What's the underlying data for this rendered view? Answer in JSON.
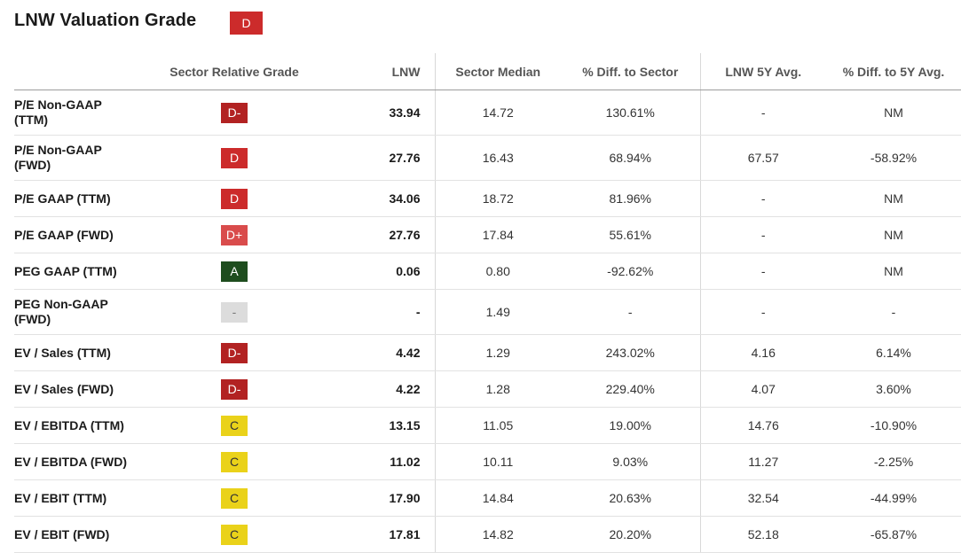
{
  "title": "LNW Valuation Grade",
  "overall_grade": {
    "label": "D",
    "color": "#cc2b2b"
  },
  "columns": {
    "metric": "",
    "grade": "Sector Relative Grade",
    "lnw": "LNW",
    "median": "Sector Median",
    "diff_sector": "% Diff. to Sector",
    "avg5y": "LNW 5Y Avg.",
    "diff5y": "% Diff. to 5Y Avg."
  },
  "grade_colors": {
    "D-": {
      "bg": "#b22222",
      "fg": "#ffffff"
    },
    "D": {
      "bg": "#cc2b2b",
      "fg": "#ffffff"
    },
    "D+": {
      "bg": "#d94c4c",
      "fg": "#ffffff"
    },
    "A": {
      "bg": "#1e4d1e",
      "fg": "#ffffff"
    },
    "C": {
      "bg": "#ead21a",
      "fg": "#333333"
    },
    "-": {
      "bg": "#dcdcdc",
      "fg": "#777777"
    }
  },
  "rows": [
    {
      "metric": [
        "P/E Non-GAAP",
        "(TTM)"
      ],
      "grade": "D-",
      "lnw": "33.94",
      "median": "14.72",
      "diff_sector": "130.61%",
      "avg5y": "-",
      "diff5y": "NM"
    },
    {
      "metric": [
        "P/E Non-GAAP",
        "(FWD)"
      ],
      "grade": "D",
      "lnw": "27.76",
      "median": "16.43",
      "diff_sector": "68.94%",
      "avg5y": "67.57",
      "diff5y": "-58.92%"
    },
    {
      "metric": [
        "P/E GAAP (TTM)"
      ],
      "grade": "D",
      "lnw": "34.06",
      "median": "18.72",
      "diff_sector": "81.96%",
      "avg5y": "-",
      "diff5y": "NM"
    },
    {
      "metric": [
        "P/E GAAP (FWD)"
      ],
      "grade": "D+",
      "lnw": "27.76",
      "median": "17.84",
      "diff_sector": "55.61%",
      "avg5y": "-",
      "diff5y": "NM"
    },
    {
      "metric": [
        "PEG GAAP (TTM)"
      ],
      "grade": "A",
      "lnw": "0.06",
      "median": "0.80",
      "diff_sector": "-92.62%",
      "avg5y": "-",
      "diff5y": "NM"
    },
    {
      "metric": [
        "PEG Non-GAAP",
        "(FWD)"
      ],
      "grade": "-",
      "lnw": "-",
      "median": "1.49",
      "diff_sector": "-",
      "avg5y": "-",
      "diff5y": "-"
    },
    {
      "metric": [
        "EV / Sales (TTM)"
      ],
      "grade": "D-",
      "lnw": "4.42",
      "median": "1.29",
      "diff_sector": "243.02%",
      "avg5y": "4.16",
      "diff5y": "6.14%"
    },
    {
      "metric": [
        "EV / Sales (FWD)"
      ],
      "grade": "D-",
      "lnw": "4.22",
      "median": "1.28",
      "diff_sector": "229.40%",
      "avg5y": "4.07",
      "diff5y": "3.60%"
    },
    {
      "metric": [
        "EV / EBITDA (TTM)"
      ],
      "grade": "C",
      "lnw": "13.15",
      "median": "11.05",
      "diff_sector": "19.00%",
      "avg5y": "14.76",
      "diff5y": "-10.90%"
    },
    {
      "metric": [
        "EV / EBITDA (FWD)"
      ],
      "grade": "C",
      "lnw": "11.02",
      "median": "10.11",
      "diff_sector": "9.03%",
      "avg5y": "11.27",
      "diff5y": "-2.25%"
    },
    {
      "metric": [
        "EV / EBIT (TTM)"
      ],
      "grade": "C",
      "lnw": "17.90",
      "median": "14.84",
      "diff_sector": "20.63%",
      "avg5y": "32.54",
      "diff5y": "-44.99%"
    },
    {
      "metric": [
        "EV / EBIT (FWD)"
      ],
      "grade": "C",
      "lnw": "17.81",
      "median": "14.82",
      "diff_sector": "20.20%",
      "avg5y": "52.18",
      "diff5y": "-65.87%"
    }
  ]
}
